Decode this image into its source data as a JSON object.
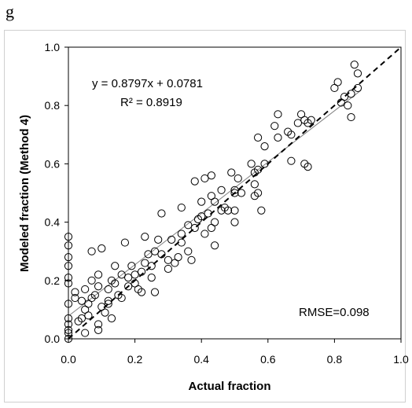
{
  "panel_label": "g",
  "chart_data": {
    "type": "scatter",
    "title": "",
    "xlabel": "Actual fraction",
    "ylabel": "Modeled fraction (Method 4)",
    "xlim": [
      0,
      1
    ],
    "ylim": [
      0,
      1
    ],
    "x_ticks": [
      "0.0",
      "0.2",
      "0.4",
      "0.6",
      "0.8",
      "1.0"
    ],
    "y_ticks": [
      "0.0",
      "0.2",
      "0.4",
      "0.6",
      "0.8",
      "1.0"
    ],
    "grid": false,
    "legend": "none",
    "annotations": {
      "equation": "y = 0.8797x + 0.0781",
      "r_squared": "R² = 0.8919",
      "rmse": "RMSE=0.098"
    },
    "regression_line": {
      "slope": 0.8797,
      "intercept": 0.0781,
      "x_range": [
        0,
        0.88
      ],
      "style": "solid",
      "color": "#808080"
    },
    "identity_line": {
      "slope": 1,
      "intercept": 0,
      "x_range": [
        0,
        1
      ],
      "style": "dashed",
      "color": "#000000"
    },
    "marker": {
      "shape": "open-circle",
      "color": "#000000"
    },
    "points": [
      [
        0.0,
        0.0
      ],
      [
        0.0,
        0.02
      ],
      [
        0.0,
        0.03
      ],
      [
        0.0,
        0.05
      ],
      [
        0.0,
        0.07
      ],
      [
        0.0,
        0.12
      ],
      [
        0.0,
        0.19
      ],
      [
        0.0,
        0.21
      ],
      [
        0.0,
        0.25
      ],
      [
        0.0,
        0.28
      ],
      [
        0.0,
        0.32
      ],
      [
        0.0,
        0.35
      ],
      [
        0.02,
        0.14
      ],
      [
        0.02,
        0.16
      ],
      [
        0.03,
        0.06
      ],
      [
        0.04,
        0.13
      ],
      [
        0.04,
        0.07
      ],
      [
        0.05,
        0.02
      ],
      [
        0.05,
        0.1
      ],
      [
        0.05,
        0.17
      ],
      [
        0.06,
        0.08
      ],
      [
        0.06,
        0.12
      ],
      [
        0.07,
        0.14
      ],
      [
        0.07,
        0.2
      ],
      [
        0.07,
        0.3
      ],
      [
        0.08,
        0.15
      ],
      [
        0.09,
        0.03
      ],
      [
        0.09,
        0.05
      ],
      [
        0.09,
        0.18
      ],
      [
        0.09,
        0.22
      ],
      [
        0.1,
        0.31
      ],
      [
        0.1,
        0.11
      ],
      [
        0.11,
        0.09
      ],
      [
        0.12,
        0.13
      ],
      [
        0.12,
        0.17
      ],
      [
        0.12,
        0.12
      ],
      [
        0.13,
        0.07
      ],
      [
        0.13,
        0.2
      ],
      [
        0.14,
        0.19
      ],
      [
        0.14,
        0.25
      ],
      [
        0.15,
        0.15
      ],
      [
        0.16,
        0.22
      ],
      [
        0.16,
        0.14
      ],
      [
        0.17,
        0.33
      ],
      [
        0.18,
        0.21
      ],
      [
        0.18,
        0.18
      ],
      [
        0.19,
        0.25
      ],
      [
        0.2,
        0.22
      ],
      [
        0.2,
        0.19
      ],
      [
        0.21,
        0.17
      ],
      [
        0.22,
        0.23
      ],
      [
        0.22,
        0.16
      ],
      [
        0.23,
        0.26
      ],
      [
        0.23,
        0.35
      ],
      [
        0.24,
        0.29
      ],
      [
        0.25,
        0.25
      ],
      [
        0.25,
        0.21
      ],
      [
        0.26,
        0.16
      ],
      [
        0.26,
        0.3
      ],
      [
        0.27,
        0.34
      ],
      [
        0.28,
        0.43
      ],
      [
        0.28,
        0.29
      ],
      [
        0.3,
        0.27
      ],
      [
        0.3,
        0.24
      ],
      [
        0.31,
        0.34
      ],
      [
        0.32,
        0.26
      ],
      [
        0.33,
        0.28
      ],
      [
        0.34,
        0.36
      ],
      [
        0.34,
        0.45
      ],
      [
        0.34,
        0.33
      ],
      [
        0.36,
        0.39
      ],
      [
        0.36,
        0.3
      ],
      [
        0.37,
        0.27
      ],
      [
        0.38,
        0.54
      ],
      [
        0.38,
        0.38
      ],
      [
        0.39,
        0.41
      ],
      [
        0.4,
        0.47
      ],
      [
        0.4,
        0.42
      ],
      [
        0.41,
        0.55
      ],
      [
        0.41,
        0.36
      ],
      [
        0.42,
        0.43
      ],
      [
        0.43,
        0.56
      ],
      [
        0.43,
        0.49
      ],
      [
        0.43,
        0.38
      ],
      [
        0.44,
        0.32
      ],
      [
        0.44,
        0.4
      ],
      [
        0.44,
        0.47
      ],
      [
        0.46,
        0.44
      ],
      [
        0.46,
        0.51
      ],
      [
        0.47,
        0.45
      ],
      [
        0.48,
        0.44
      ],
      [
        0.49,
        0.57
      ],
      [
        0.5,
        0.5
      ],
      [
        0.5,
        0.51
      ],
      [
        0.5,
        0.4
      ],
      [
        0.5,
        0.44
      ],
      [
        0.51,
        0.55
      ],
      [
        0.52,
        0.5
      ],
      [
        0.55,
        0.6
      ],
      [
        0.56,
        0.53
      ],
      [
        0.56,
        0.57
      ],
      [
        0.56,
        0.49
      ],
      [
        0.57,
        0.5
      ],
      [
        0.57,
        0.58
      ],
      [
        0.57,
        0.69
      ],
      [
        0.58,
        0.44
      ],
      [
        0.59,
        0.6
      ],
      [
        0.59,
        0.66
      ],
      [
        0.62,
        0.73
      ],
      [
        0.63,
        0.77
      ],
      [
        0.63,
        0.69
      ],
      [
        0.66,
        0.71
      ],
      [
        0.67,
        0.61
      ],
      [
        0.67,
        0.7
      ],
      [
        0.69,
        0.74
      ],
      [
        0.7,
        0.77
      ],
      [
        0.71,
        0.6
      ],
      [
        0.71,
        0.75
      ],
      [
        0.72,
        0.59
      ],
      [
        0.72,
        0.74
      ],
      [
        0.73,
        0.75
      ],
      [
        0.8,
        0.86
      ],
      [
        0.81,
        0.88
      ],
      [
        0.82,
        0.81
      ],
      [
        0.83,
        0.83
      ],
      [
        0.84,
        0.8
      ],
      [
        0.85,
        0.76
      ],
      [
        0.85,
        0.84
      ],
      [
        0.86,
        0.94
      ],
      [
        0.87,
        0.86
      ],
      [
        0.87,
        0.91
      ]
    ]
  }
}
